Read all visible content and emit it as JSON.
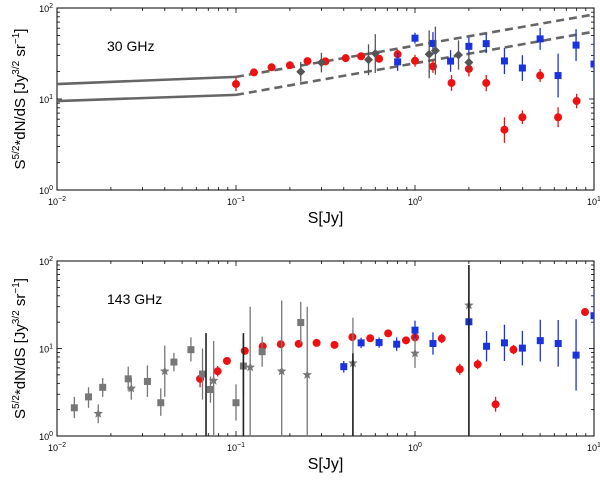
{
  "chart_data": [
    {
      "id": "panel-30ghz",
      "type": "scatter",
      "title": "30 GHz",
      "xlabel": "S[Jy]",
      "ylabel_main": "S",
      "ylabel_sup": "5/2",
      "ylabel_rest": "*dN/dS [Jy",
      "ylabel_unit_sup": "3/2",
      "ylabel_end": "sr",
      "ylabel_end_sup": "−1",
      "ylabel_close": "]",
      "xscale": "log",
      "yscale": "log",
      "xlim": [
        0.01,
        10
      ],
      "ylim": [
        1,
        100
      ],
      "xticks": [
        {
          "value": 0.01,
          "base": "10",
          "exp": "−2"
        },
        {
          "value": 0.1,
          "base": "10",
          "exp": "−1"
        },
        {
          "value": 1,
          "base": "10",
          "exp": "0"
        },
        {
          "value": 10,
          "base": "10",
          "exp": "1"
        }
      ],
      "yticks": [
        {
          "value": 1,
          "base": "10",
          "exp": "0"
        },
        {
          "value": 10,
          "base": "10",
          "exp": "1"
        },
        {
          "value": 100,
          "base": "10",
          "exp": "2"
        }
      ],
      "colors": {
        "red": "#ee1111",
        "blue": "#1a33dd",
        "gray": "#555555",
        "model": "#666666"
      },
      "series": [
        {
          "name": "Model band (solid)",
          "style": "solid",
          "lines": [
            [
              [
                0.01,
                14.6
              ],
              [
                0.1,
                17.5
              ]
            ],
            [
              [
                0.01,
                9.5
              ],
              [
                0.1,
                11.1
              ]
            ]
          ]
        },
        {
          "name": "Model band (dashed)",
          "style": "dashed",
          "lines": [
            [
              [
                0.1,
                17.5
              ],
              [
                10,
                85
              ]
            ],
            [
              [
                0.1,
                11.1
              ],
              [
                10,
                55
              ]
            ]
          ]
        },
        {
          "name": "Red circles",
          "marker": "circle",
          "color": "red",
          "points": [
            {
              "x": 0.1,
              "y": 14.6,
              "lo": 12.2,
              "hi": 17.5
            },
            {
              "x": 0.126,
              "y": 19.6,
              "lo": 18.4,
              "hi": 20.9
            },
            {
              "x": 0.158,
              "y": 22.3,
              "lo": 21,
              "hi": 23.7
            },
            {
              "x": 0.2,
              "y": 23.5,
              "lo": 22.2,
              "hi": 24.9
            },
            {
              "x": 0.251,
              "y": 26.1,
              "lo": 24.6,
              "hi": 27.7
            },
            {
              "x": 0.316,
              "y": 25.9,
              "lo": 24.2,
              "hi": 27.7
            },
            {
              "x": 0.41,
              "y": 28.1,
              "lo": 26.1,
              "hi": 30.3
            },
            {
              "x": 0.5,
              "y": 29.5,
              "lo": 27.2,
              "hi": 32
            },
            {
              "x": 0.63,
              "y": 27.7,
              "lo": 25.3,
              "hi": 30.4
            },
            {
              "x": 0.8,
              "y": 31,
              "lo": 27.4,
              "hi": 35
            },
            {
              "x": 1.0,
              "y": 26.3,
              "lo": 22.6,
              "hi": 30.6
            },
            {
              "x": 1.26,
              "y": 22.8,
              "lo": 19.4,
              "hi": 26.8
            },
            {
              "x": 1.6,
              "y": 15,
              "lo": 12.3,
              "hi": 18.3
            },
            {
              "x": 2.0,
              "y": 21.4,
              "lo": 17.7,
              "hi": 25.9
            },
            {
              "x": 2.5,
              "y": 15,
              "lo": 12.2,
              "hi": 18.4
            },
            {
              "x": 3.16,
              "y": 4.6,
              "lo": 3.3,
              "hi": 6.3
            },
            {
              "x": 3.98,
              "y": 6.3,
              "lo": 5.3,
              "hi": 7.5
            },
            {
              "x": 5.0,
              "y": 18.1,
              "lo": 15.4,
              "hi": 21.3
            },
            {
              "x": 6.3,
              "y": 6.3,
              "lo": 4.9,
              "hi": 8.1
            },
            {
              "x": 8.0,
              "y": 9.5,
              "lo": 7.9,
              "hi": 11.4
            }
          ]
        },
        {
          "name": "Blue squares",
          "marker": "square",
          "color": "blue",
          "points": [
            {
              "x": 0.8,
              "y": 25.6,
              "lo": 20.4,
              "hi": 32.1
            },
            {
              "x": 1.0,
              "y": 46.6,
              "lo": 40.7,
              "hi": 53.4
            },
            {
              "x": 1.26,
              "y": 40.8,
              "lo": 30.7,
              "hi": 54.3
            },
            {
              "x": 1.58,
              "y": 26.1,
              "lo": 19.9,
              "hi": 34.4
            },
            {
              "x": 2.0,
              "y": 37.9,
              "lo": 30.3,
              "hi": 47.5
            },
            {
              "x": 2.5,
              "y": 40.6,
              "lo": 31.9,
              "hi": 51.8
            },
            {
              "x": 3.16,
              "y": 26.2,
              "lo": 18.8,
              "hi": 36.6
            },
            {
              "x": 3.98,
              "y": 21.9,
              "lo": 15.8,
              "hi": 30.3
            },
            {
              "x": 5.0,
              "y": 45.8,
              "lo": 34.7,
              "hi": 60.4
            },
            {
              "x": 6.3,
              "y": 18.1,
              "lo": 10.4,
              "hi": 31.5
            },
            {
              "x": 7.94,
              "y": 39.1,
              "lo": 26.1,
              "hi": 58.5
            },
            {
              "x": 10.0,
              "y": 24.2,
              "lo": 12.4,
              "hi": 47.2
            }
          ]
        },
        {
          "name": "Gray diamonds",
          "marker": "diamond",
          "color": "gray",
          "points": [
            {
              "x": 0.23,
              "y": 19.9,
              "lo": 15.5,
              "hi": 25.6
            },
            {
              "x": 0.3,
              "y": 25.1,
              "lo": 19.6,
              "hi": 32.2
            },
            {
              "x": 0.55,
              "y": 27,
              "lo": 18.3,
              "hi": 39.9
            },
            {
              "x": 0.6,
              "y": 31.6,
              "lo": 19.3,
              "hi": 51.6
            },
            {
              "x": 1.2,
              "y": 31,
              "lo": 16.9,
              "hi": 56.8
            },
            {
              "x": 1.3,
              "y": 34,
              "lo": 18.5,
              "hi": 62.4
            },
            {
              "x": 1.75,
              "y": 30.4,
              "lo": 21,
              "hi": 44.1
            },
            {
              "x": 2.0,
              "y": 25.3,
              "lo": 20.3,
              "hi": 31.5
            }
          ]
        }
      ]
    },
    {
      "id": "panel-143ghz",
      "type": "scatter",
      "title": "143 GHz",
      "xlabel": "S[Jy]",
      "ylabel_main": "S",
      "ylabel_sup": "5/2",
      "ylabel_rest": "*dN/dS [Jy",
      "ylabel_unit_sup": "3/2",
      "ylabel_end": "sr",
      "ylabel_end_sup": "−1",
      "ylabel_close": "]",
      "xscale": "log",
      "yscale": "log",
      "xlim": [
        0.01,
        10
      ],
      "ylim": [
        1,
        100
      ],
      "xticks": [
        {
          "value": 0.01,
          "base": "10",
          "exp": "−2"
        },
        {
          "value": 0.1,
          "base": "10",
          "exp": "−1"
        },
        {
          "value": 1,
          "base": "10",
          "exp": "0"
        },
        {
          "value": 10,
          "base": "10",
          "exp": "1"
        }
      ],
      "yticks": [
        {
          "value": 1,
          "base": "10",
          "exp": "0"
        },
        {
          "value": 10,
          "base": "10",
          "exp": "1"
        },
        {
          "value": 100,
          "base": "10",
          "exp": "2"
        }
      ],
      "colors": {
        "red": "#ee1111",
        "blue": "#1a33dd",
        "gray": "#777777",
        "dark": "#222222"
      },
      "series": [
        {
          "name": "Red circles",
          "marker": "circle",
          "color": "red",
          "points": [
            {
              "x": 0.063,
              "y": 4.5,
              "lo": 3.6,
              "hi": 5.6
            },
            {
              "x": 0.079,
              "y": 5.5,
              "lo": 4.8,
              "hi": 6.3
            },
            {
              "x": 0.089,
              "y": 7.2,
              "lo": 6.5,
              "hi": 8
            },
            {
              "x": 0.112,
              "y": 9.4,
              "lo": 8.6,
              "hi": 10.3
            },
            {
              "x": 0.141,
              "y": 10.6,
              "lo": 9.8,
              "hi": 11.5
            },
            {
              "x": 0.178,
              "y": 11.2,
              "lo": 10.4,
              "hi": 12
            },
            {
              "x": 0.224,
              "y": 11.3,
              "lo": 10.6,
              "hi": 12.1
            },
            {
              "x": 0.282,
              "y": 11.6,
              "lo": 10.8,
              "hi": 12.4
            },
            {
              "x": 0.355,
              "y": 11,
              "lo": 10.2,
              "hi": 11.8
            },
            {
              "x": 0.447,
              "y": 13.5,
              "lo": 12.4,
              "hi": 14.7
            },
            {
              "x": 0.562,
              "y": 13.1,
              "lo": 12,
              "hi": 14.3
            },
            {
              "x": 0.708,
              "y": 14.9,
              "lo": 13.6,
              "hi": 16.3
            },
            {
              "x": 0.891,
              "y": 12.4,
              "lo": 11.2,
              "hi": 13.7
            },
            {
              "x": 1.0,
              "y": 13.4,
              "lo": 12,
              "hi": 15
            },
            {
              "x": 1.41,
              "y": 13,
              "lo": 11.5,
              "hi": 14.7
            },
            {
              "x": 1.78,
              "y": 5.8,
              "lo": 5,
              "hi": 6.7
            },
            {
              "x": 2.24,
              "y": 6.6,
              "lo": 5.8,
              "hi": 7.5
            },
            {
              "x": 2.82,
              "y": 2.3,
              "lo": 1.9,
              "hi": 2.8
            },
            {
              "x": 3.55,
              "y": 9.7,
              "lo": 8.6,
              "hi": 11
            },
            {
              "x": 8.91,
              "y": 26.1,
              "lo": 23.6,
              "hi": 28.9
            }
          ]
        },
        {
          "name": "Blue squares",
          "marker": "square",
          "color": "blue",
          "points": [
            {
              "x": 0.4,
              "y": 6.2,
              "lo": 5.3,
              "hi": 7.2
            },
            {
              "x": 0.5,
              "y": 11.6,
              "lo": 10.1,
              "hi": 13.3
            },
            {
              "x": 0.63,
              "y": 11.7,
              "lo": 10.2,
              "hi": 13.4
            },
            {
              "x": 0.79,
              "y": 11.2,
              "lo": 9.4,
              "hi": 13.4
            },
            {
              "x": 1.0,
              "y": 16.2,
              "lo": 12.6,
              "hi": 20.8
            },
            {
              "x": 1.26,
              "y": 11.4,
              "lo": 8.5,
              "hi": 15.3
            },
            {
              "x": 2.0,
              "y": 20.2,
              "lo": 14.9,
              "hi": 27.4
            },
            {
              "x": 2.51,
              "y": 10.6,
              "lo": 7.1,
              "hi": 15.8
            },
            {
              "x": 3.16,
              "y": 11.6,
              "lo": 7.2,
              "hi": 18.7
            },
            {
              "x": 3.98,
              "y": 10.1,
              "lo": 6.4,
              "hi": 15.9
            },
            {
              "x": 5.01,
              "y": 12.3,
              "lo": 7.1,
              "hi": 21.3
            },
            {
              "x": 6.31,
              "y": 11.4,
              "lo": 6.2,
              "hi": 21.2
            },
            {
              "x": 7.94,
              "y": 8.4,
              "lo": 3.3,
              "hi": 21.6
            },
            {
              "x": 10.0,
              "y": 23.7,
              "lo": 12.5,
              "hi": 44.7
            }
          ]
        },
        {
          "name": "Gray squares",
          "marker": "square",
          "color": "gray",
          "points": [
            {
              "x": 0.0125,
              "y": 2.1,
              "lo": 1.6,
              "hi": 2.8
            },
            {
              "x": 0.015,
              "y": 2.8,
              "lo": 2.1,
              "hi": 3.6
            },
            {
              "x": 0.018,
              "y": 3.6,
              "lo": 2.8,
              "hi": 4.6
            },
            {
              "x": 0.025,
              "y": 4.5,
              "lo": 3.3,
              "hi": 6.2
            },
            {
              "x": 0.032,
              "y": 4.2,
              "lo": 2.8,
              "hi": 6.4
            },
            {
              "x": 0.038,
              "y": 2.4,
              "lo": 1.7,
              "hi": 3.5
            },
            {
              "x": 0.045,
              "y": 7,
              "lo": 5.5,
              "hi": 8.9
            },
            {
              "x": 0.056,
              "y": 9.7,
              "lo": 7.1,
              "hi": 13.4
            },
            {
              "x": 0.065,
              "y": 5.1,
              "lo": 2.6,
              "hi": 10
            },
            {
              "x": 0.072,
              "y": 3.4,
              "lo": 2.4,
              "hi": 4.8
            },
            {
              "x": 0.1,
              "y": 2.4,
              "lo": 1.5,
              "hi": 3.9
            },
            {
              "x": 0.11,
              "y": 6.3,
              "lo": 3,
              "hi": 13.1
            },
            {
              "x": 0.14,
              "y": 9.2,
              "lo": 6.2,
              "hi": 13.7
            },
            {
              "x": 0.23,
              "y": 19.8,
              "lo": 11.4,
              "hi": 34.1
            }
          ]
        },
        {
          "name": "Gray stars",
          "marker": "star",
          "color": "gray",
          "points": [
            {
              "x": 0.017,
              "y": 1.8,
              "lo": 1.4,
              "hi": 2.3
            },
            {
              "x": 0.026,
              "y": 3.5,
              "lo": 2.6,
              "hi": 4.6
            },
            {
              "x": 0.04,
              "y": 5.5,
              "lo": 2.8,
              "hi": 10.8
            },
            {
              "x": 0.075,
              "y": 4.3,
              "lo": 1,
              "hi": 12.2
            },
            {
              "x": 0.12,
              "y": 6.1,
              "lo": 1,
              "hi": 30
            },
            {
              "x": 0.18,
              "y": 5.5,
              "lo": 1,
              "hi": 35.4
            },
            {
              "x": 0.25,
              "y": 5,
              "lo": 1,
              "hi": 30
            },
            {
              "x": 0.45,
              "y": 6.8,
              "lo": 1,
              "hi": 22.5
            },
            {
              "x": 1.0,
              "y": 8.8,
              "lo": 6,
              "hi": 13
            },
            {
              "x": 2.0,
              "y": 31.2,
              "lo": 1,
              "hi": 90
            }
          ]
        },
        {
          "name": "Dark vertical bars",
          "marker": "none",
          "color": "dark",
          "points": [
            {
              "x": 0.068,
              "y": 5.1,
              "lo": 1,
              "hi": 15
            },
            {
              "x": 0.11,
              "y": 5.5,
              "lo": 1,
              "hi": 15
            },
            {
              "x": 0.45,
              "y": 5,
              "lo": 1,
              "hi": 8.8
            },
            {
              "x": 2.0,
              "y": 20,
              "lo": 1,
              "hi": 90
            }
          ]
        }
      ]
    }
  ]
}
